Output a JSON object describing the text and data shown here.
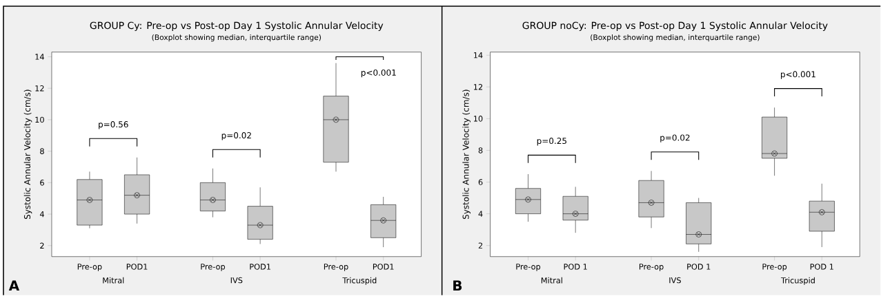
{
  "chart_data": [
    {
      "type": "box",
      "title": "GROUP Cy: Pre-op vs Post-op Day 1 Systolic Annular Velocity",
      "subtitle": "(Boxplot showing median, interquartile range)",
      "ylabel": "Systolic Annular Velocity (cm/s)",
      "categories": [
        "Pre-op",
        "POD1",
        "Pre-op",
        "POD1",
        "Pre-op",
        "POD1"
      ],
      "ylim": [
        1.3,
        14.3
      ],
      "yticks": [
        2,
        4,
        6,
        8,
        10,
        12,
        14
      ],
      "series": [
        {
          "color": "#c8c8c8",
          "boxes": [
            {
              "low": 3.1,
              "q1": 3.3,
              "median": 4.9,
              "q3": 6.2,
              "high": 6.7,
              "mean": 4.9
            },
            {
              "low": 3.4,
              "q1": 4.0,
              "median": 5.2,
              "q3": 6.5,
              "high": 7.6,
              "mean": 5.2
            },
            {
              "low": 3.8,
              "q1": 4.2,
              "median": 4.9,
              "q3": 6.0,
              "high": 6.9,
              "mean": 4.9
            },
            {
              "low": 2.1,
              "q1": 2.4,
              "median": 3.3,
              "q3": 4.5,
              "high": 5.7,
              "mean": 3.3
            },
            {
              "low": 6.7,
              "q1": 7.3,
              "median": 10.0,
              "q3": 11.5,
              "high": 13.6,
              "mean": 10.0
            },
            {
              "low": 1.9,
              "q1": 2.5,
              "median": 3.6,
              "q3": 4.6,
              "high": 5.1,
              "mean": 3.6
            }
          ]
        }
      ],
      "annotations": [
        "p=0.56",
        "p=0.02",
        "p<0.001",
        "Mitral",
        "IVS",
        "Tricuspid",
        "A"
      ]
    },
    {
      "type": "box",
      "title": "GROUP noCy: Pre-op vs Post-op Day 1 Systolic Annular Velocity",
      "subtitle": "(Boxplot showing median, interquartile range)",
      "ylabel": "Systolic Annular Velocity (cm/s)",
      "categories": [
        "Pre-op",
        "POD 1",
        "Pre-op",
        "POD 1",
        "Pre-op",
        "POD 1"
      ],
      "ylim": [
        1.3,
        14.2
      ],
      "yticks": [
        2,
        4,
        6,
        8,
        10,
        12,
        14
      ],
      "series": [
        {
          "color": "#c8c8c8",
          "boxes": [
            {
              "low": 3.5,
              "q1": 4.0,
              "median": 4.9,
              "q3": 5.6,
              "high": 6.5,
              "mean": 4.9
            },
            {
              "low": 2.8,
              "q1": 3.6,
              "median": 4.0,
              "q3": 5.1,
              "high": 5.7,
              "mean": 4.0
            },
            {
              "low": 3.1,
              "q1": 3.8,
              "median": 4.7,
              "q3": 6.1,
              "high": 6.7,
              "mean": 4.7
            },
            {
              "low": 1.6,
              "q1": 2.1,
              "median": 2.7,
              "q3": 4.7,
              "high": 5.0,
              "mean": 2.7
            },
            {
              "low": 6.4,
              "q1": 7.5,
              "median": 7.8,
              "q3": 10.1,
              "high": 10.7,
              "mean": 7.8
            },
            {
              "low": 1.9,
              "q1": 2.9,
              "median": 4.1,
              "q3": 4.8,
              "high": 5.9,
              "mean": 4.1
            }
          ]
        }
      ],
      "annotations": [
        "p=0.25",
        "p=0.02",
        "p<0.001",
        "Mitral",
        "IVS",
        "Tricuspid",
        "B"
      ]
    }
  ]
}
